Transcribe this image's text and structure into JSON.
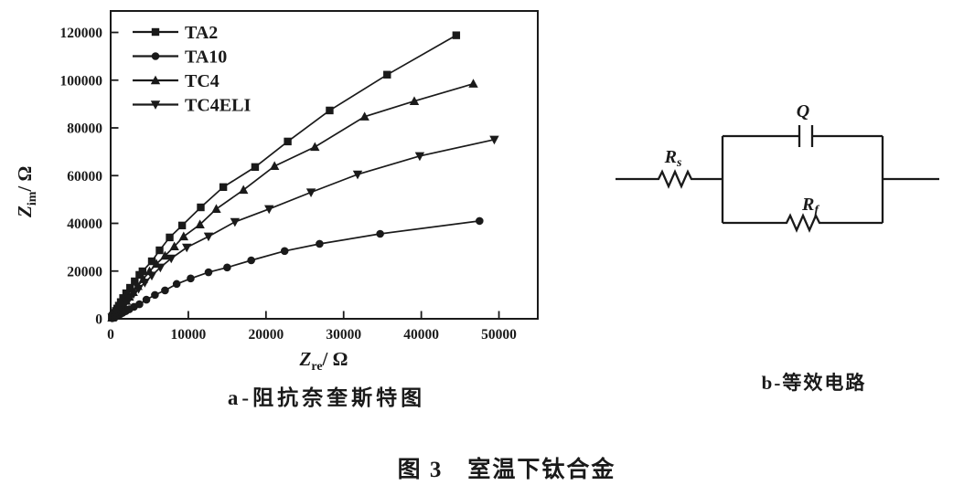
{
  "figure": {
    "panel_a_caption": "a-阻抗奈奎斯特图",
    "panel_b_caption": "b-等效电路",
    "main_caption": "图 3　室温下钛合金"
  },
  "chart_data": {
    "type": "scatter",
    "title": "",
    "xlabel": "Zre/ Ω",
    "ylabel": "Zim/ Ω",
    "xlabel_parts": {
      "symbol": "Z",
      "sub": "re",
      "unit": "/ Ω"
    },
    "ylabel_parts": {
      "symbol": "Z",
      "sub": "im",
      "unit": "/ Ω"
    },
    "xlim": [
      0,
      55000
    ],
    "ylim": [
      0,
      129000
    ],
    "x_ticks": [
      0,
      10000,
      20000,
      30000,
      40000,
      50000
    ],
    "y_ticks": [
      0,
      20000,
      40000,
      60000,
      80000,
      100000,
      120000
    ],
    "grid": false,
    "legend_position": "top-left",
    "line_color": "#1a1a1a",
    "series": [
      {
        "name": "TA2",
        "marker": "square",
        "points": [
          [
            150,
            500
          ],
          [
            200,
            750
          ],
          [
            260,
            1050
          ],
          [
            330,
            1400
          ],
          [
            420,
            1900
          ],
          [
            530,
            2500
          ],
          [
            670,
            3300
          ],
          [
            840,
            4300
          ],
          [
            1050,
            5500
          ],
          [
            1300,
            7000
          ],
          [
            1600,
            8700
          ],
          [
            2000,
            10700
          ],
          [
            2500,
            13000
          ],
          [
            3100,
            15700
          ],
          [
            3700,
            18400
          ],
          [
            4100,
            19900
          ],
          [
            5300,
            24100
          ],
          [
            6300,
            28700
          ],
          [
            7600,
            34100
          ],
          [
            9200,
            39100
          ],
          [
            11600,
            46700
          ],
          [
            14500,
            55200
          ],
          [
            18600,
            63600
          ],
          [
            22800,
            74300
          ],
          [
            28200,
            87300
          ],
          [
            35600,
            102300
          ],
          [
            44500,
            118800
          ]
        ]
      },
      {
        "name": "TA10",
        "marker": "circle",
        "points": [
          [
            200,
            260
          ],
          [
            270,
            360
          ],
          [
            360,
            500
          ],
          [
            480,
            680
          ],
          [
            620,
            900
          ],
          [
            800,
            1200
          ],
          [
            1000,
            1550
          ],
          [
            1250,
            2000
          ],
          [
            1550,
            2500
          ],
          [
            1950,
            3200
          ],
          [
            2400,
            4000
          ],
          [
            3000,
            5000
          ],
          [
            3700,
            6100
          ],
          [
            4600,
            8000
          ],
          [
            5700,
            10000
          ],
          [
            7000,
            11900
          ],
          [
            8500,
            14600
          ],
          [
            10300,
            16900
          ],
          [
            12600,
            19500
          ],
          [
            15000,
            21500
          ],
          [
            18100,
            24500
          ],
          [
            22400,
            28400
          ],
          [
            26900,
            31400
          ],
          [
            34700,
            35600
          ],
          [
            47500,
            41000
          ]
        ]
      },
      {
        "name": "TC4",
        "marker": "triangle-up",
        "points": [
          [
            180,
            480
          ],
          [
            240,
            700
          ],
          [
            320,
            950
          ],
          [
            420,
            1300
          ],
          [
            550,
            1800
          ],
          [
            700,
            2300
          ],
          [
            900,
            3100
          ],
          [
            1100,
            3900
          ],
          [
            1350,
            4900
          ],
          [
            1650,
            6100
          ],
          [
            2000,
            7500
          ],
          [
            2400,
            9200
          ],
          [
            2900,
            11200
          ],
          [
            3500,
            13700
          ],
          [
            4200,
            16600
          ],
          [
            5000,
            19900
          ],
          [
            5900,
            23000
          ],
          [
            7000,
            26400
          ],
          [
            8200,
            30300
          ],
          [
            9400,
            34500
          ],
          [
            11500,
            39500
          ],
          [
            13600,
            46000
          ],
          [
            17100,
            54000
          ],
          [
            21100,
            64000
          ],
          [
            26300,
            72000
          ],
          [
            32700,
            84700
          ],
          [
            39100,
            91200
          ],
          [
            46700,
            98500
          ]
        ]
      },
      {
        "name": "TC4ELI",
        "marker": "triangle-down",
        "points": [
          [
            200,
            550
          ],
          [
            280,
            800
          ],
          [
            380,
            1150
          ],
          [
            500,
            1600
          ],
          [
            650,
            2100
          ],
          [
            850,
            2800
          ],
          [
            1050,
            3600
          ],
          [
            1300,
            4500
          ],
          [
            1600,
            5600
          ],
          [
            1950,
            6900
          ],
          [
            2400,
            8500
          ],
          [
            2950,
            10400
          ],
          [
            3600,
            12600
          ],
          [
            4400,
            15200
          ],
          [
            5300,
            18100
          ],
          [
            6400,
            21500
          ],
          [
            7800,
            25300
          ],
          [
            9800,
            29900
          ],
          [
            12600,
            34500
          ],
          [
            16000,
            40600
          ],
          [
            20400,
            46000
          ],
          [
            25800,
            53000
          ],
          [
            31800,
            60500
          ],
          [
            39800,
            68200
          ],
          [
            49400,
            75100
          ]
        ]
      }
    ]
  },
  "circuit": {
    "series_resistor": {
      "symbol": "R",
      "sub": "s"
    },
    "cpe": {
      "symbol": "Q",
      "sub": ""
    },
    "film_resistor": {
      "symbol": "R",
      "sub": "f"
    }
  }
}
